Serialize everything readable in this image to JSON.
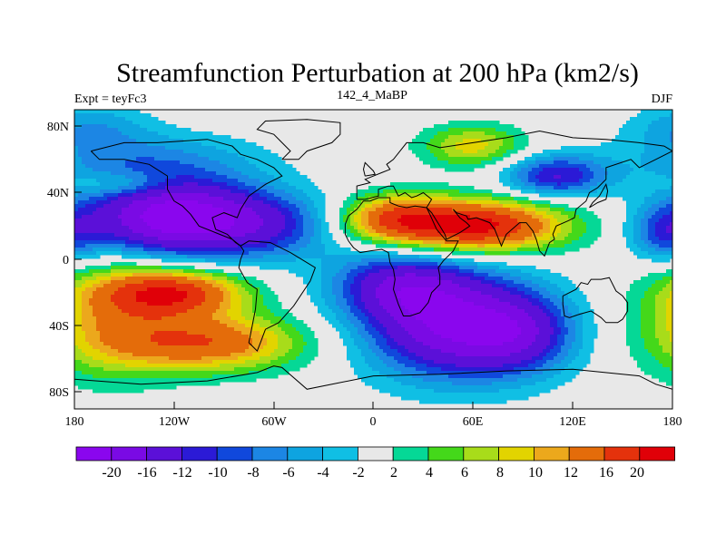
{
  "header": {
    "title": "Streamfunction Perturbation at 200 hPa (km2/s)",
    "left_label": "Expt = teyFc3",
    "center_label": "142_4_MaBP",
    "right_label": "DJF"
  },
  "axes": {
    "x_ticks": [
      "180",
      "120W",
      "60W",
      "0",
      "60E",
      "120E",
      "180"
    ],
    "y_ticks": [
      "80N",
      "40N",
      "0",
      "40S",
      "80S"
    ]
  },
  "colorbar": {
    "colors": [
      "#8a06ee",
      "#7a0ae4",
      "#5b10d8",
      "#2b1ad6",
      "#1048dc",
      "#1c86e4",
      "#0ea4e0",
      "#10bfe4",
      "#e8e8e8",
      "#05d896",
      "#44d81a",
      "#a8dc1a",
      "#e2d400",
      "#eca81c",
      "#e46c0a",
      "#e4320c",
      "#e00008"
    ],
    "labels": [
      "-20",
      "-16",
      "-12",
      "-10",
      "-8",
      "-6",
      "-4",
      "-2",
      "2",
      "4",
      "6",
      "8",
      "10",
      "12",
      "16",
      "20"
    ]
  },
  "field": {
    "palette": {
      "neg": [
        "#10bfe4",
        "#0ea4e0",
        "#1c86e4",
        "#1048dc",
        "#2b1ad6",
        "#5b10d8",
        "#7a0ae4",
        "#8a06ee"
      ],
      "pos": [
        "#05d896",
        "#44d81a",
        "#a8dc1a",
        "#e2d400",
        "#eca81c",
        "#e46c0a",
        "#e4320c",
        "#e00008"
      ],
      "neutral": "#e8e8e8",
      "coast": "#000000"
    },
    "levels_neg": [
      -2,
      -4,
      -6,
      -8,
      -10,
      -12,
      -16,
      -20
    ],
    "levels_pos": [
      2,
      4,
      6,
      8,
      10,
      12,
      16,
      20
    ],
    "centers": [
      {
        "lon": -120,
        "lat": 25,
        "amp": -23,
        "slon": 38,
        "slat": 16
      },
      {
        "lon": -60,
        "lat": 20,
        "amp": -8,
        "slon": 30,
        "slat": 14
      },
      {
        "lon": 50,
        "lat": -40,
        "amp": -20,
        "slon": 38,
        "slat": 22
      },
      {
        "lon": 15,
        "lat": -15,
        "amp": -12,
        "slon": 28,
        "slat": 14
      },
      {
        "lon": 90,
        "lat": -45,
        "amp": -8,
        "slon": 22,
        "slat": 16
      },
      {
        "lon": -140,
        "lat": 60,
        "amp": -6,
        "slon": 50,
        "slat": 12
      },
      {
        "lon": 110,
        "lat": 50,
        "amp": -12,
        "slon": 22,
        "slat": 9
      },
      {
        "lon": -170,
        "lat": 80,
        "amp": -5,
        "slon": 25,
        "slat": 10
      },
      {
        "lon": 60,
        "lat": 20,
        "amp": 22,
        "slon": 38,
        "slat": 11
      },
      {
        "lon": 10,
        "lat": 25,
        "amp": 11,
        "slon": 22,
        "slat": 10
      },
      {
        "lon": -120,
        "lat": -20,
        "amp": 18,
        "slon": 30,
        "slat": 10
      },
      {
        "lon": -100,
        "lat": -50,
        "amp": 15,
        "slon": 40,
        "slat": 12
      },
      {
        "lon": -160,
        "lat": -35,
        "amp": 9,
        "slon": 30,
        "slat": 25
      },
      {
        "lon": 60,
        "lat": 68,
        "amp": 9,
        "slon": 22,
        "slat": 9
      },
      {
        "lon": -150,
        "lat": 45,
        "amp": 5,
        "slon": 20,
        "slat": 5
      },
      {
        "lon": 175,
        "lat": 15,
        "amp": -8,
        "slon": 15,
        "slat": 12
      }
    ]
  },
  "coastlines": [
    [
      [
        -170,
        65
      ],
      [
        -150,
        70
      ],
      [
        -130,
        70
      ],
      [
        -100,
        72
      ],
      [
        -85,
        68
      ],
      [
        -80,
        63
      ],
      [
        -70,
        60
      ],
      [
        -60,
        55
      ],
      [
        -55,
        50
      ],
      [
        -65,
        45
      ],
      [
        -75,
        38
      ],
      [
        -80,
        30
      ],
      [
        -82,
        25
      ],
      [
        -90,
        28
      ],
      [
        -97,
        25
      ],
      [
        -95,
        18
      ],
      [
        -88,
        15
      ],
      [
        -83,
        10
      ],
      [
        -80,
        8
      ],
      [
        -85,
        12
      ],
      [
        -95,
        16
      ],
      [
        -105,
        20
      ],
      [
        -110,
        27
      ],
      [
        -115,
        32
      ],
      [
        -120,
        35
      ],
      [
        -124,
        42
      ],
      [
        -124,
        50
      ],
      [
        -135,
        57
      ],
      [
        -150,
        60
      ],
      [
        -165,
        60
      ],
      [
        -170,
        65
      ]
    ],
    [
      [
        -80,
        8
      ],
      [
        -75,
        11
      ],
      [
        -62,
        10
      ],
      [
        -50,
        4
      ],
      [
        -35,
        -5
      ],
      [
        -38,
        -13
      ],
      [
        -48,
        -28
      ],
      [
        -57,
        -38
      ],
      [
        -65,
        -42
      ],
      [
        -68,
        -50
      ],
      [
        -70,
        -55
      ],
      [
        -75,
        -50
      ],
      [
        -73,
        -40
      ],
      [
        -71,
        -30
      ],
      [
        -70,
        -18
      ],
      [
        -76,
        -14
      ],
      [
        -81,
        -5
      ],
      [
        -80,
        0
      ],
      [
        -78,
        5
      ],
      [
        -80,
        8
      ]
    ],
    [
      [
        -10,
        36
      ],
      [
        -10,
        44
      ],
      [
        -2,
        46
      ],
      [
        -5,
        48
      ],
      [
        5,
        52
      ],
      [
        10,
        54
      ],
      [
        8,
        57
      ],
      [
        12,
        60
      ],
      [
        20,
        70
      ],
      [
        30,
        70
      ],
      [
        40,
        67
      ],
      [
        60,
        70
      ],
      [
        80,
        73
      ],
      [
        100,
        77
      ],
      [
        120,
        73
      ],
      [
        140,
        72
      ],
      [
        160,
        70
      ],
      [
        175,
        68
      ],
      [
        180,
        65
      ],
      [
        170,
        60
      ],
      [
        160,
        55
      ],
      [
        155,
        60
      ],
      [
        140,
        55
      ],
      [
        140,
        48
      ],
      [
        135,
        43
      ],
      [
        130,
        40
      ],
      [
        128,
        35
      ],
      [
        122,
        30
      ],
      [
        121,
        25
      ],
      [
        117,
        23
      ],
      [
        110,
        20
      ],
      [
        108,
        15
      ],
      [
        109,
        12
      ],
      [
        106,
        10
      ],
      [
        103,
        2
      ],
      [
        100,
        5
      ],
      [
        98,
        12
      ],
      [
        96,
        17
      ],
      [
        92,
        22
      ],
      [
        88,
        22
      ],
      [
        80,
        15
      ],
      [
        77,
        8
      ],
      [
        73,
        18
      ],
      [
        70,
        22
      ],
      [
        62,
        25
      ],
      [
        57,
        24
      ],
      [
        56,
        26
      ],
      [
        50,
        28
      ],
      [
        48,
        30
      ],
      [
        52,
        25
      ],
      [
        56,
        22
      ],
      [
        58,
        20
      ],
      [
        52,
        16
      ],
      [
        44,
        12
      ],
      [
        43,
        15
      ],
      [
        40,
        20
      ],
      [
        35,
        28
      ],
      [
        32,
        31
      ],
      [
        35,
        36
      ],
      [
        30,
        40
      ],
      [
        26,
        38
      ],
      [
        23,
        37
      ],
      [
        19,
        40
      ],
      [
        15,
        38
      ],
      [
        12,
        44
      ],
      [
        9,
        44
      ],
      [
        3,
        42
      ],
      [
        3,
        38
      ],
      [
        -5,
        36
      ],
      [
        -10,
        36
      ]
    ],
    [
      [
        -17,
        21
      ],
      [
        -17,
        15
      ],
      [
        -15,
        11
      ],
      [
        -12,
        7
      ],
      [
        -8,
        4
      ],
      [
        -2,
        5
      ],
      [
        5,
        6
      ],
      [
        9,
        4
      ],
      [
        10,
        -2
      ],
      [
        12,
        -6
      ],
      [
        13,
        -12
      ],
      [
        12,
        -18
      ],
      [
        15,
        -27
      ],
      [
        18,
        -34
      ],
      [
        22,
        -34
      ],
      [
        28,
        -32
      ],
      [
        33,
        -26
      ],
      [
        35,
        -20
      ],
      [
        40,
        -15
      ],
      [
        40,
        -10
      ],
      [
        39,
        -5
      ],
      [
        42,
        -1
      ],
      [
        48,
        5
      ],
      [
        51,
        11
      ],
      [
        44,
        11
      ],
      [
        38,
        18
      ],
      [
        34,
        27
      ],
      [
        32,
        31
      ],
      [
        25,
        32
      ],
      [
        20,
        31
      ],
      [
        15,
        32
      ],
      [
        10,
        34
      ],
      [
        10,
        37
      ],
      [
        3,
        37
      ],
      [
        -2,
        35
      ],
      [
        -6,
        35
      ],
      [
        -10,
        30
      ],
      [
        -15,
        26
      ],
      [
        -17,
        21
      ]
    ],
    [
      [
        114,
        -22
      ],
      [
        114,
        -27
      ],
      [
        115,
        -34
      ],
      [
        118,
        -35
      ],
      [
        124,
        -33
      ],
      [
        131,
        -31
      ],
      [
        137,
        -35
      ],
      [
        140,
        -38
      ],
      [
        147,
        -38
      ],
      [
        150,
        -36
      ],
      [
        153,
        -31
      ],
      [
        153,
        -26
      ],
      [
        150,
        -22
      ],
      [
        146,
        -19
      ],
      [
        142,
        -11
      ],
      [
        137,
        -12
      ],
      [
        131,
        -12
      ],
      [
        129,
        -15
      ],
      [
        125,
        -14
      ],
      [
        122,
        -18
      ],
      [
        114,
        -22
      ]
    ],
    [
      [
        -55,
        60
      ],
      [
        -45,
        60
      ],
      [
        -40,
        65
      ],
      [
        -25,
        70
      ],
      [
        -20,
        75
      ],
      [
        -20,
        82
      ],
      [
        -40,
        84
      ],
      [
        -65,
        83
      ],
      [
        -70,
        78
      ],
      [
        -60,
        75
      ],
      [
        -55,
        70
      ],
      [
        -50,
        65
      ],
      [
        -55,
        60
      ]
    ],
    [
      [
        -180,
        -72
      ],
      [
        -140,
        -75
      ],
      [
        -100,
        -73
      ],
      [
        -70,
        -68
      ],
      [
        -60,
        -64
      ],
      [
        -55,
        -65
      ],
      [
        -40,
        -78
      ],
      [
        0,
        -70
      ],
      [
        40,
        -69
      ],
      [
        80,
        -67
      ],
      [
        120,
        -66
      ],
      [
        160,
        -70
      ],
      [
        170,
        -75
      ],
      [
        180,
        -78
      ]
    ],
    [
      [
        -5,
        50
      ],
      [
        1,
        51
      ],
      [
        0,
        53
      ],
      [
        -3,
        56
      ],
      [
        -5,
        58
      ],
      [
        -6,
        54
      ],
      [
        -5,
        50
      ]
    ],
    [
      [
        130,
        31
      ],
      [
        135,
        34
      ],
      [
        140,
        36
      ],
      [
        141,
        41
      ],
      [
        140,
        45
      ],
      [
        136,
        38
      ],
      [
        132,
        34
      ],
      [
        130,
        31
      ]
    ]
  ]
}
